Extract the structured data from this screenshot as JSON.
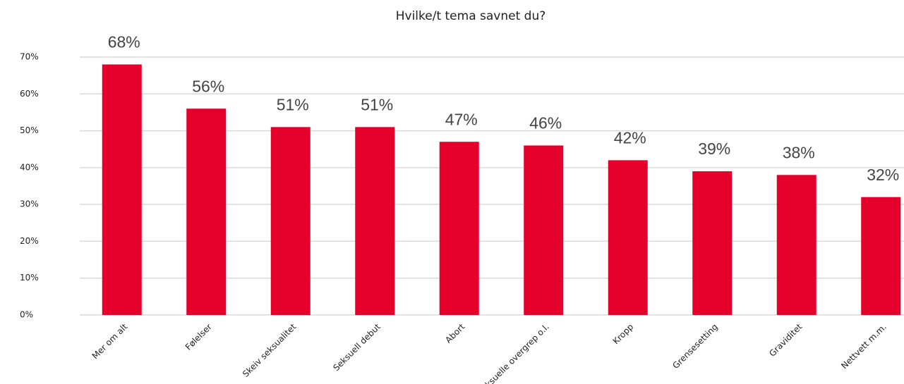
{
  "chart_data": {
    "type": "bar",
    "title": "Hvilke/t tema savnet du?",
    "categories": [
      "Mer om alt",
      "Følelser",
      "Skeiv seksualitet",
      "Seksuell debut",
      "Abort",
      "Seksuelle overgrep o.l.",
      "Kropp",
      "Grensesetting",
      "Graviditet",
      "Nettvett m.m."
    ],
    "values": [
      68,
      56,
      51,
      51,
      47,
      46,
      42,
      39,
      38,
      32
    ],
    "value_labels": [
      "68%",
      "56%",
      "51%",
      "51%",
      "47%",
      "46%",
      "42%",
      "39%",
      "38%",
      "32%"
    ],
    "color": "#e4002b",
    "ylim": [
      0,
      70
    ],
    "yticks": [
      {
        "value": 0,
        "label": "0%"
      },
      {
        "value": 10,
        "label": "10%"
      },
      {
        "value": 20,
        "label": "20%"
      },
      {
        "value": 30,
        "label": "30%"
      },
      {
        "value": 40,
        "label": "40%"
      },
      {
        "value": 50,
        "label": "50%"
      },
      {
        "value": 60,
        "label": "60%"
      },
      {
        "value": 70,
        "label": "70%"
      }
    ],
    "grid": true
  }
}
